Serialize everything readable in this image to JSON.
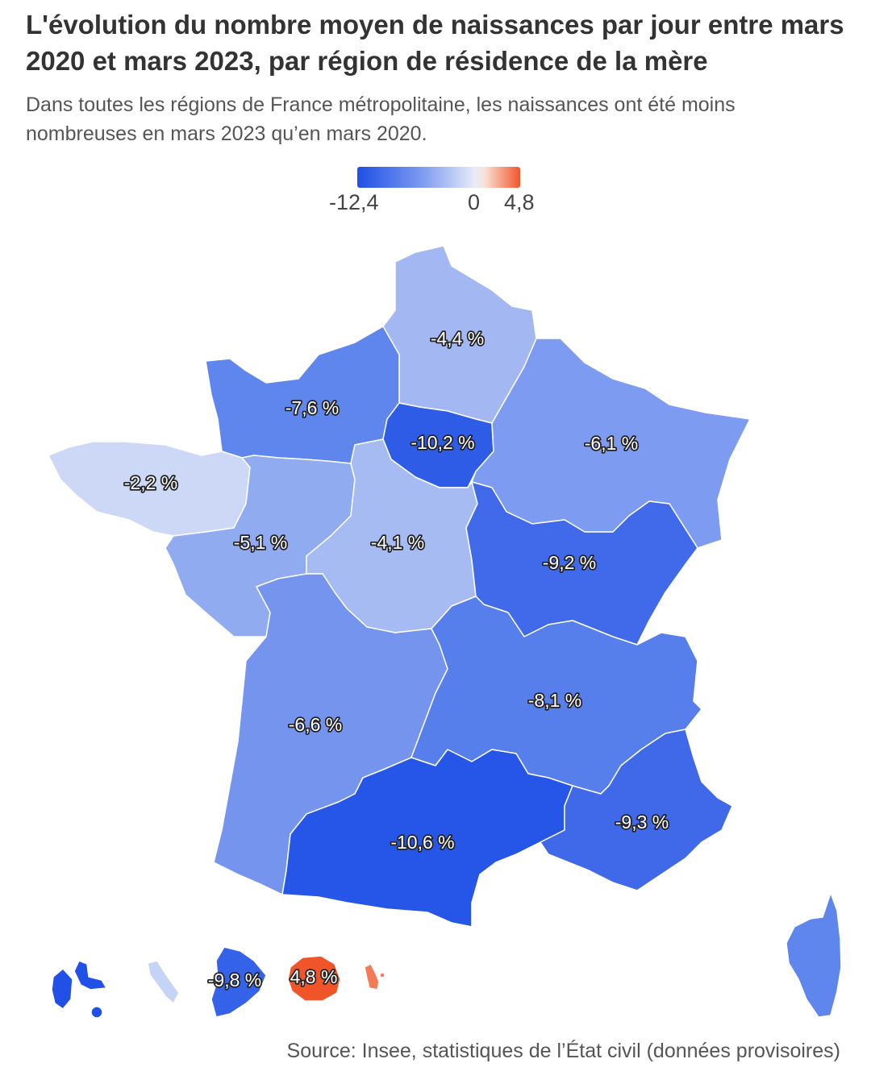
{
  "title": "L'évolution du nombre moyen de naissances par jour entre mars 2020 et mars 2023, par région de résidence de la mère",
  "subtitle": "Dans toutes les régions de France métropolitaine, les naissances ont été moins nombreuses en mars 2023 qu’en mars 2020.",
  "legend": {
    "min": "-12,4",
    "zero": "0",
    "max": "4,8",
    "color_low": "#1e4fe6",
    "color_zero": "#e6ebf8",
    "color_high": "#f0552a"
  },
  "regions": {
    "hauts_de_france": {
      "label": "-4,4 %",
      "value": -4.4,
      "color": "#a3b8f2"
    },
    "normandie": {
      "label": "-7,6 %",
      "value": -7.6,
      "color": "#5f86ec"
    },
    "ile_de_france": {
      "label": "-10,2 %",
      "value": -10.2,
      "color": "#2f5ce7"
    },
    "grand_est": {
      "label": "-6,1 %",
      "value": -6.1,
      "color": "#7d9bf0"
    },
    "bretagne": {
      "label": "-2,2 %",
      "value": -2.2,
      "color": "#ccd8f6"
    },
    "pays_de_la_loire": {
      "label": "-5,1 %",
      "value": -5.1,
      "color": "#91abf1"
    },
    "centre_val_de_loire": {
      "label": "-4,1 %",
      "value": -4.1,
      "color": "#a6bbf2"
    },
    "bourgogne_franche_comte": {
      "label": "-9,2 %",
      "value": -9.2,
      "color": "#406ae9"
    },
    "nouvelle_aquitaine": {
      "label": "-6,6 %",
      "value": -6.6,
      "color": "#7494ee"
    },
    "auvergne_rhone_alpes": {
      "label": "-8,1 %",
      "value": -8.1,
      "color": "#577fec"
    },
    "occitanie": {
      "label": "-10,6 %",
      "value": -10.6,
      "color": "#2656e7"
    },
    "provence_alpes_cote_d_azur": {
      "label": "-9,3 %",
      "value": -9.3,
      "color": "#3f69e9"
    },
    "corse": {
      "value": null,
      "color": "#5f86ec"
    },
    "guadeloupe": {
      "value": null,
      "color": "#2050e6"
    },
    "martinique": {
      "value": null,
      "color": "#c5d3f6"
    },
    "guyane": {
      "label": "-9,8 %",
      "value": -9.8,
      "color": "#3462e8"
    },
    "la_reunion": {
      "label": "4,8 %",
      "value": 4.8,
      "color": "#f0552a"
    },
    "mayotte": {
      "value": null,
      "color": "#f27a55"
    }
  },
  "source": "Source: Insee, statistiques de l’État civil (données provisoires)"
}
